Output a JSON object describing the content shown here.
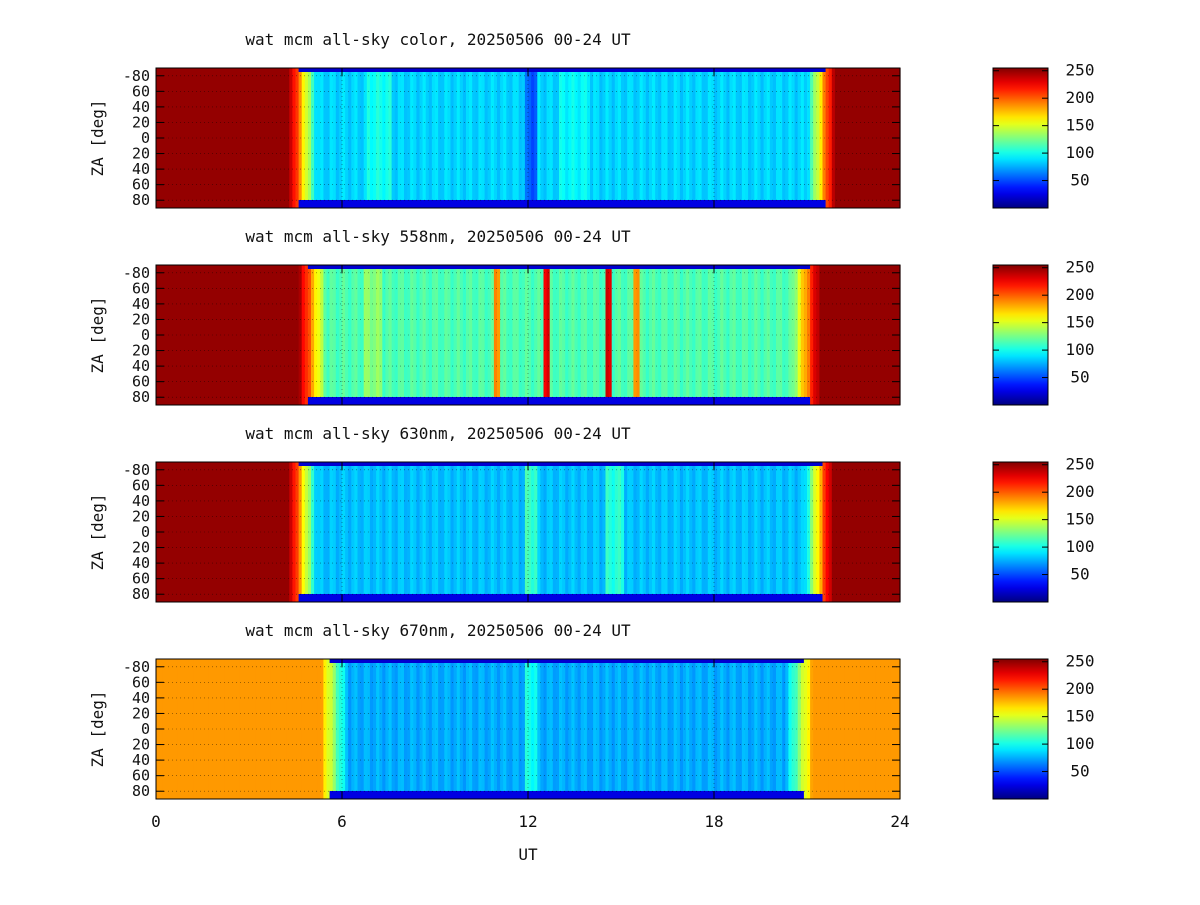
{
  "figure": {
    "xlabel": "UT",
    "ylabel": "ZA [deg]"
  },
  "chart_data": [
    {
      "type": "heatmap",
      "title": "wat mcm all-sky color, 20250506 00-24 UT",
      "xlabel": "",
      "ylabel": "ZA [deg]",
      "xlim": [
        0,
        24
      ],
      "ylim": [
        -90,
        90
      ],
      "x_ticks": [
        0,
        6,
        12,
        18,
        24
      ],
      "y_ticks": [
        -80,
        -60,
        -40,
        -20,
        0,
        20,
        40,
        60,
        80
      ],
      "y_tick_labels": [
        "-80",
        "60",
        "40",
        "20",
        "0",
        "20",
        "40",
        "60",
        "80"
      ],
      "colorbar": {
        "range": [
          0,
          255
        ],
        "ticks": [
          50,
          100,
          150,
          200,
          250
        ]
      },
      "grid": true,
      "night_start_ut": 4.6,
      "night_end_ut": 21.6,
      "outside_value": 250,
      "base_value": 85,
      "features": [
        {
          "ut": 12.1,
          "width": 0.25,
          "value": 55
        },
        {
          "ut": 7.2,
          "width": 0.4,
          "value": 100
        },
        {
          "ut": 13.5,
          "width": 0.5,
          "value": 95
        }
      ]
    },
    {
      "type": "heatmap",
      "title": "wat mcm all-sky 558nm, 20250506 00-24 UT",
      "xlabel": "",
      "ylabel": "ZA [deg]",
      "xlim": [
        0,
        24
      ],
      "ylim": [
        -90,
        90
      ],
      "x_ticks": [
        0,
        6,
        12,
        18,
        24
      ],
      "y_ticks": [
        -80,
        -60,
        -40,
        -20,
        0,
        20,
        40,
        60,
        80
      ],
      "y_tick_labels": [
        "-80",
        "60",
        "40",
        "20",
        "0",
        "20",
        "40",
        "60",
        "80"
      ],
      "colorbar": {
        "range": [
          0,
          255
        ],
        "ticks": [
          50,
          100,
          150,
          200,
          250
        ]
      },
      "grid": true,
      "night_start_ut": 4.9,
      "night_end_ut": 21.1,
      "outside_value": 250,
      "base_value": 115,
      "features": [
        {
          "ut": 11.0,
          "width": 0.12,
          "value": 190
        },
        {
          "ut": 12.6,
          "width": 0.15,
          "value": 230
        },
        {
          "ut": 14.6,
          "width": 0.15,
          "value": 230
        },
        {
          "ut": 15.5,
          "width": 0.1,
          "value": 190
        },
        {
          "ut": 7.0,
          "width": 0.3,
          "value": 130
        }
      ]
    },
    {
      "type": "heatmap",
      "title": "wat mcm all-sky 630nm, 20250506 00-24 UT",
      "xlabel": "",
      "ylabel": "ZA [deg]",
      "xlim": [
        0,
        24
      ],
      "ylim": [
        -90,
        90
      ],
      "x_ticks": [
        0,
        6,
        12,
        18,
        24
      ],
      "y_ticks": [
        -80,
        -60,
        -40,
        -20,
        0,
        20,
        40,
        60,
        80
      ],
      "y_tick_labels": [
        "-80",
        "60",
        "40",
        "20",
        "0",
        "20",
        "40",
        "60",
        "80"
      ],
      "colorbar": {
        "range": [
          0,
          255
        ],
        "ticks": [
          50,
          100,
          150,
          200,
          250
        ]
      },
      "grid": true,
      "night_start_ut": 4.6,
      "night_end_ut": 21.5,
      "outside_value": 250,
      "base_value": 80,
      "features": [
        {
          "ut": 12.1,
          "width": 0.2,
          "value": 110
        },
        {
          "ut": 14.8,
          "width": 0.3,
          "value": 105
        }
      ]
    },
    {
      "type": "heatmap",
      "title": "wat mcm all-sky 670nm, 20250506 00-24 UT",
      "xlabel": "UT",
      "ylabel": "ZA [deg]",
      "xlim": [
        0,
        24
      ],
      "ylim": [
        -90,
        90
      ],
      "x_ticks": [
        0,
        6,
        12,
        18,
        24
      ],
      "y_ticks": [
        -80,
        -60,
        -40,
        -20,
        0,
        20,
        40,
        60,
        80
      ],
      "y_tick_labels": [
        "-80",
        "60",
        "40",
        "20",
        "0",
        "20",
        "40",
        "60",
        "80"
      ],
      "colorbar": {
        "range": [
          0,
          255
        ],
        "ticks": [
          50,
          100,
          150,
          200,
          250
        ]
      },
      "grid": true,
      "night_start_ut": 5.6,
      "night_end_ut": 20.9,
      "outside_value": 185,
      "base_value": 75,
      "features": [
        {
          "ut": 12.1,
          "width": 0.2,
          "value": 100
        }
      ]
    }
  ]
}
